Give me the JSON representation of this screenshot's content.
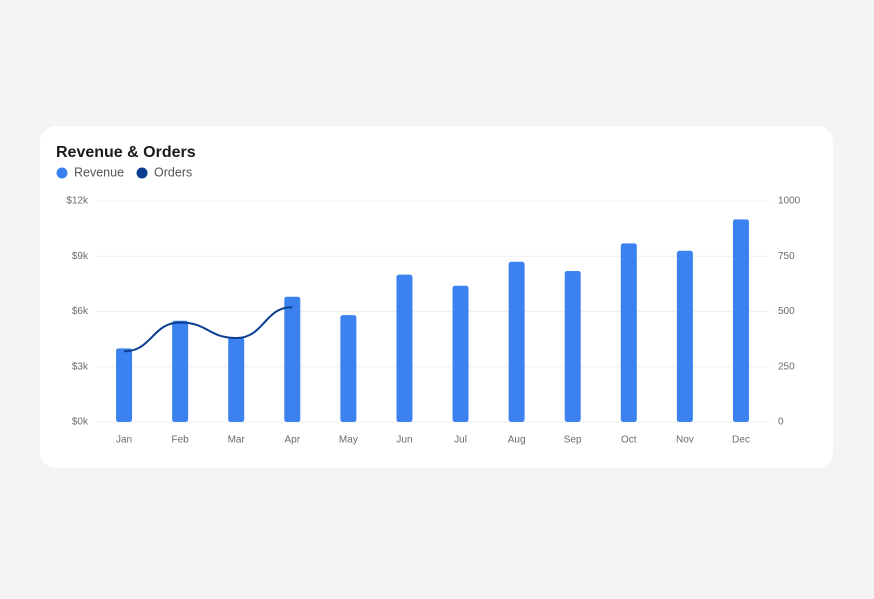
{
  "chart_data": {
    "type": "bar-line",
    "title": "Revenue & Orders",
    "categories": [
      "Jan",
      "Feb",
      "Mar",
      "Apr",
      "May",
      "Jun",
      "Jul",
      "Aug",
      "Sep",
      "Oct",
      "Nov",
      "Dec"
    ],
    "series": [
      {
        "name": "Revenue",
        "color": "#3b82f0",
        "type": "bar",
        "values": [
          4000,
          5500,
          4600,
          6800,
          5800,
          8000,
          7400,
          8700,
          8200,
          9700,
          9300,
          11000
        ]
      },
      {
        "name": "Orders",
        "color": "#0b3d91",
        "type": "line",
        "axis": "y2",
        "values": [
          320,
          450,
          380,
          520,
          null,
          null,
          null,
          null,
          null,
          null,
          null,
          null
        ]
      }
    ],
    "ylim": [
      0,
      12000
    ],
    "yticks": [
      {
        "value": 0,
        "label": "$0k"
      },
      {
        "value": 3000,
        "label": "$3k"
      },
      {
        "value": 6000,
        "label": "$6k"
      },
      {
        "value": 9000,
        "label": "$9k"
      },
      {
        "value": 12000,
        "label": "$12k"
      }
    ],
    "y2lim": [
      0,
      1000
    ],
    "y2ticks": [
      0,
      250,
      500,
      750,
      1000
    ],
    "grid": true
  }
}
